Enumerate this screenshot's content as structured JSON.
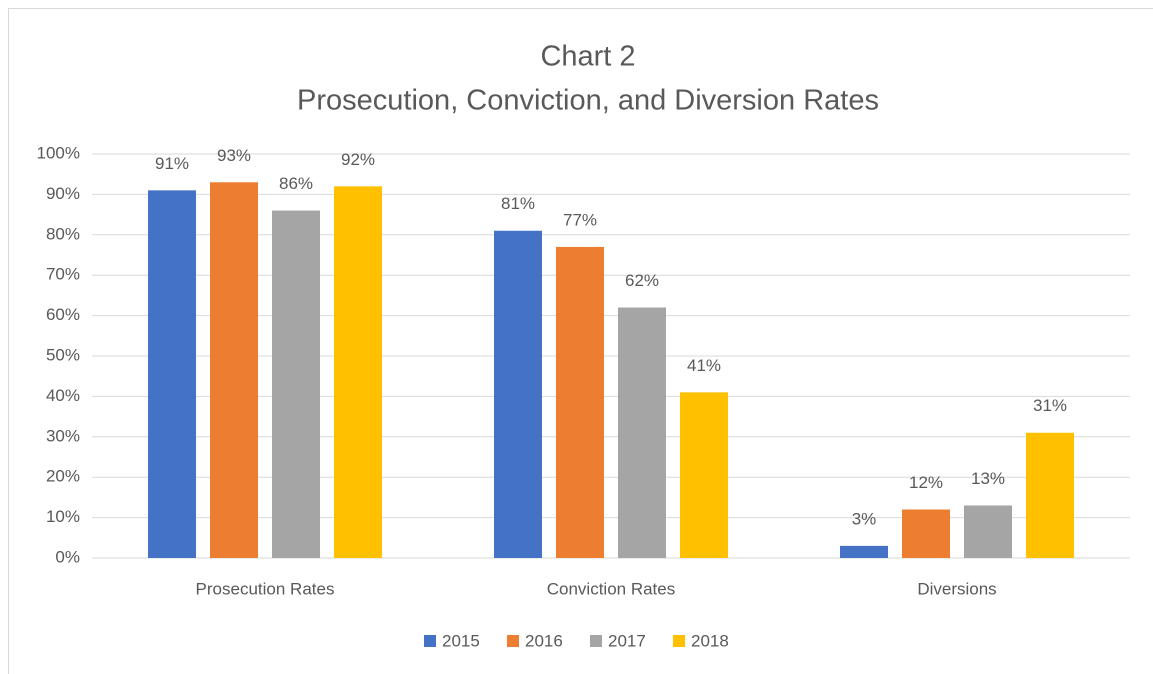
{
  "chart_data": {
    "type": "bar",
    "title": "Chart 2",
    "subtitle": "Prosecution, Conviction, and Diversion Rates",
    "categories": [
      "Prosecution Rates",
      "Conviction Rates",
      "Diversions"
    ],
    "series": [
      {
        "name": "2015",
        "color": "#4472c4",
        "values": [
          91,
          81,
          3
        ],
        "value_labels": [
          "91%",
          "81%",
          "3%"
        ]
      },
      {
        "name": "2016",
        "color": "#ed7d31",
        "values": [
          93,
          77,
          12
        ],
        "value_labels": [
          "93%",
          "77%",
          "12%"
        ]
      },
      {
        "name": "2017",
        "color": "#a5a5a5",
        "values": [
          86,
          62,
          13
        ],
        "value_labels": [
          "86%",
          "62%",
          "13%"
        ]
      },
      {
        "name": "2018",
        "color": "#ffc000",
        "values": [
          92,
          41,
          31
        ],
        "value_labels": [
          "92%",
          "41%",
          "31%"
        ]
      }
    ],
    "ylim": [
      0,
      100
    ],
    "yticks": [
      {
        "value": 0,
        "label": "0%"
      },
      {
        "value": 10,
        "label": "10%"
      },
      {
        "value": 20,
        "label": "20%"
      },
      {
        "value": 30,
        "label": "30%"
      },
      {
        "value": 40,
        "label": "40%"
      },
      {
        "value": 50,
        "label": "50%"
      },
      {
        "value": 60,
        "label": "60%"
      },
      {
        "value": 70,
        "label": "70%"
      },
      {
        "value": 80,
        "label": "80%"
      },
      {
        "value": 90,
        "label": "90%"
      },
      {
        "value": 100,
        "label": "100%"
      }
    ],
    "grid": true,
    "legend": "bottom"
  }
}
